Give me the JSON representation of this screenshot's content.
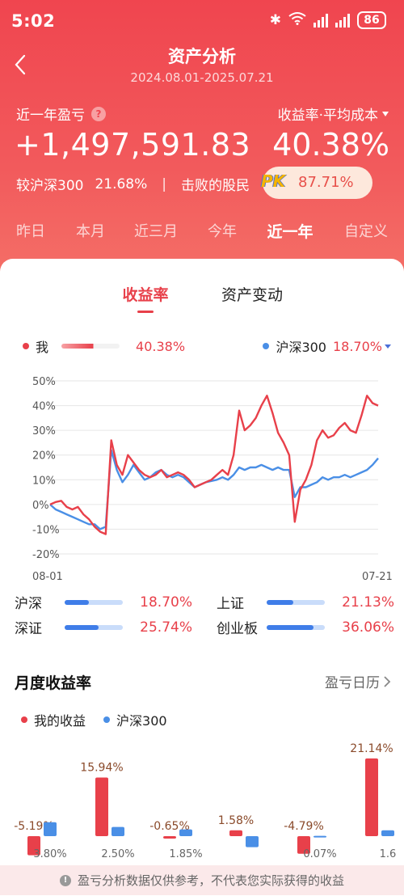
{
  "status": {
    "time": "5:02",
    "battery": "86"
  },
  "nav": {
    "title": "资产分析",
    "subtitle": "2024.08.01-2025.07.21"
  },
  "summary": {
    "profit_label": "近一年盈亏",
    "help_icon": "?",
    "rate_label": "收益率·平均成本",
    "profit_value": "+1,497,591.83",
    "rate_value": "40.38%",
    "compare_label": "较沪深300",
    "compare_value": "21.68%",
    "divider": "|",
    "beat_label": "击败的股民",
    "pk_badge": "PK",
    "beat_value": "87.71%"
  },
  "period_tabs": [
    {
      "label": "昨日"
    },
    {
      "label": "本月"
    },
    {
      "label": "近三月"
    },
    {
      "label": "今年"
    },
    {
      "label": "近一年"
    },
    {
      "label": "自定义"
    }
  ],
  "active_period_index": 4,
  "segments": [
    {
      "label": "收益率"
    },
    {
      "label": "资产变动"
    }
  ],
  "legend": {
    "me_label": "我",
    "me_value": "40.38%",
    "bench_label": "沪深300",
    "bench_value": "18.70%"
  },
  "colors": {
    "me": "#e8404a",
    "bench": "#4a8fe6",
    "positive": "#e8404a",
    "grid": "#e6e6e6"
  },
  "chart_data": {
    "type": "line",
    "ylim": [
      -20,
      50
    ],
    "yticks": [
      "50%",
      "40%",
      "30%",
      "20%",
      "10%",
      "0%",
      "-10%",
      "-20%"
    ],
    "ytick_values": [
      50,
      40,
      30,
      20,
      10,
      0,
      -10,
      -20
    ],
    "x_start_label": "08-01",
    "x_end_label": "07-21",
    "series": [
      {
        "name": "我",
        "values": [
          0,
          1,
          1.5,
          -1,
          -2,
          -1,
          -4,
          -6,
          -9,
          -11,
          -12,
          26,
          16,
          12,
          20,
          17,
          14,
          12,
          11,
          12,
          14,
          11,
          12,
          13,
          12,
          10,
          7,
          8,
          9,
          10,
          12,
          14,
          12,
          20,
          38,
          30,
          32,
          35,
          40,
          44,
          37,
          29,
          25,
          20,
          -7,
          6,
          10,
          16,
          26,
          30,
          27,
          28,
          31,
          33,
          30,
          29,
          36,
          44,
          41,
          40
        ]
      },
      {
        "name": "沪深300",
        "values": [
          0,
          -2,
          -3,
          -4,
          -5,
          -6,
          -7,
          -8,
          -8,
          -10,
          -9,
          22,
          14,
          9,
          12,
          16,
          13,
          10,
          11,
          13,
          14,
          12,
          11,
          12,
          11,
          9,
          7,
          8,
          9,
          9.5,
          10,
          11,
          10,
          12,
          15,
          14,
          15,
          15,
          16,
          15,
          14,
          15,
          14,
          14,
          3,
          7,
          7,
          8,
          9,
          11,
          10,
          11,
          11,
          12,
          11,
          12,
          13,
          14,
          16,
          18.7
        ]
      }
    ]
  },
  "benchmarks": [
    {
      "name": "沪深",
      "value": "18.70%",
      "fill": 0.42
    },
    {
      "name": "上证",
      "value": "21.13%",
      "fill": 0.46
    },
    {
      "name": "深证",
      "value": "25.74%",
      "fill": 0.58
    },
    {
      "name": "创业板",
      "value": "36.06%",
      "fill": 0.8
    }
  ],
  "monthly": {
    "title": "月度收益率",
    "link": "盈亏日历",
    "legend_me": "我的收益",
    "legend_bench": "沪深300"
  },
  "monthly_chart": {
    "type": "bar",
    "series": [
      {
        "name": "我的收益",
        "values": [
          -5.19,
          15.94,
          -0.65,
          1.58,
          -4.79,
          21.14
        ]
      },
      {
        "name": "沪深300",
        "values": [
          3.8,
          2.5,
          1.85,
          -3.0,
          0.07,
          1.6
        ]
      }
    ],
    "me_labels": [
      "-5.19%",
      "15.94%",
      "-0.65%",
      "1.58%",
      "-4.79%",
      "21.14%"
    ],
    "bench_labels": [
      "3.80%",
      "2.50%",
      "1.85%",
      "",
      "0.07%",
      "1.6"
    ]
  },
  "notice": {
    "text": "盈亏分析数据仅供参考，不代表您实际获得的收益"
  }
}
